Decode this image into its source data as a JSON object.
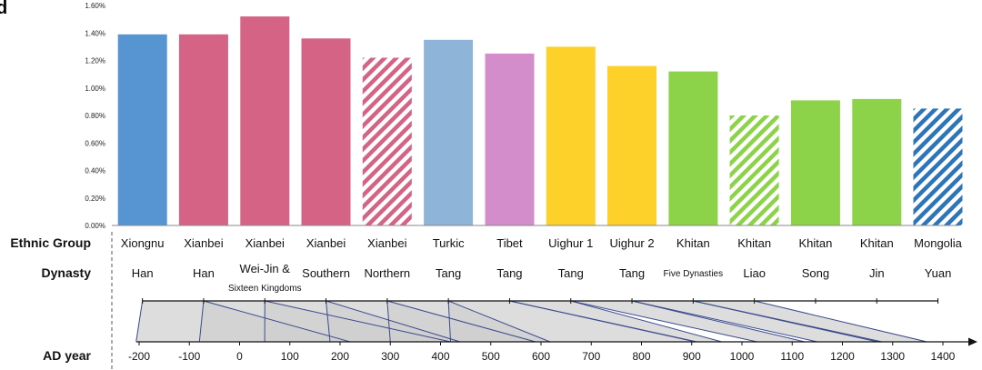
{
  "panel_label": "d",
  "row_labels": {
    "ethnic": "Ethnic Group",
    "dynasty": "Dynasty",
    "year": "AD year"
  },
  "colors": {
    "Xiongnu": "#5794d2",
    "Xianbei": "#d46385",
    "Turkic": "#8eb4d8",
    "Tibet": "#d48dcb",
    "Uighur": "#fdd02a",
    "Khitan": "#8dd34a",
    "Mongolia": "#2e74b8"
  },
  "chart_data": {
    "type": "bar",
    "ylim": [
      0,
      0.016
    ],
    "yticks": [
      "0.00%",
      "0.20%",
      "0.40%",
      "0.60%",
      "0.80%",
      "1.00%",
      "1.20%",
      "1.40%",
      "1.60%"
    ],
    "categories": [
      "Xiongnu",
      "Xianbei",
      "Xianbei",
      "Xianbei",
      "Xianbei",
      "Turkic",
      "Tibet",
      "Uighur 1",
      "Uighur 2",
      "Khitan",
      "Khitan",
      "Khitan",
      "Khitan",
      "Mongolia"
    ],
    "dynasties": [
      "Han",
      "Han",
      "Wei-Jin & Sixteen Kingdoms",
      "Southern",
      "Northern",
      "Tang",
      "Tang",
      "Tang",
      "Tang",
      "Five Dynasties",
      "Liao",
      "Song",
      "Jin",
      "Yuan"
    ],
    "values": [
      0.0139,
      0.0139,
      0.0152,
      0.0136,
      0.0122,
      0.0135,
      0.0125,
      0.013,
      0.0116,
      0.0112,
      0.008,
      0.0091,
      0.0092,
      0.0085
    ],
    "hatched": [
      false,
      false,
      false,
      false,
      true,
      false,
      false,
      false,
      false,
      false,
      true,
      false,
      false,
      true
    ],
    "bar_colors": [
      "#5794d2",
      "#d46385",
      "#d46385",
      "#d46385",
      "#d46385",
      "#8eb4d8",
      "#d48dcb",
      "#fdd02a",
      "#fdd02a",
      "#8dd34a",
      "#8dd34a",
      "#8dd34a",
      "#8dd34a",
      "#2e74b8"
    ],
    "timeline": {
      "xlim": [
        -230,
        1440
      ],
      "ticks": [
        -200,
        -100,
        0,
        100,
        200,
        300,
        400,
        500,
        600,
        700,
        800,
        900,
        1000,
        1100,
        1200,
        1300,
        1400
      ],
      "periods": [
        {
          "start": -206,
          "end": 220
        },
        {
          "start": -80,
          "end": 420
        },
        {
          "start": 50,
          "end": 439
        },
        {
          "start": 180,
          "end": 589
        },
        {
          "start": 300,
          "end": 618
        },
        {
          "start": 420,
          "end": 907
        },
        {
          "start": 910,
          "end": 960
        },
        {
          "start": 1030,
          "end": 1125
        },
        {
          "start": 1150,
          "end": 1279
        },
        {
          "start": 1270,
          "end": 1368
        }
      ]
    }
  }
}
